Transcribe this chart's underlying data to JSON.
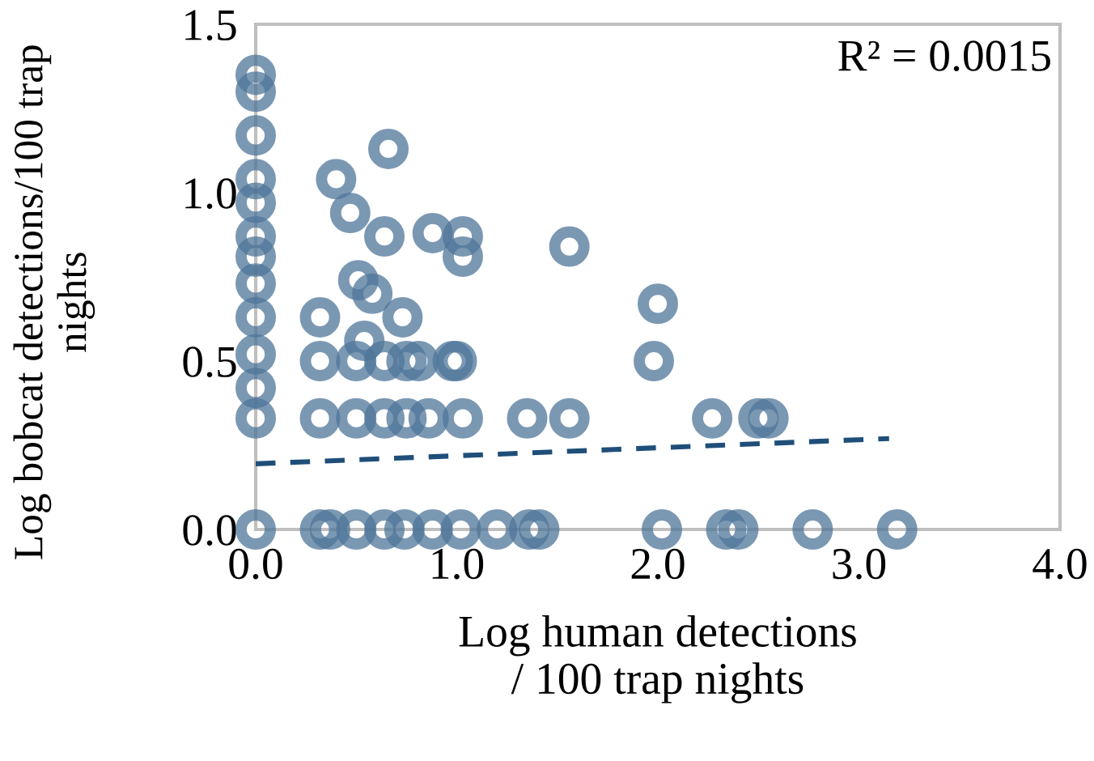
{
  "chart_data": {
    "type": "scatter",
    "xlabel": "Log human detections\n/ 100 trap nights",
    "ylabel": "Log bobcat detections/100 trap\nnights",
    "xlim": [
      0,
      4
    ],
    "ylim": [
      0,
      1.5
    ],
    "xticks": [
      {
        "value": 0,
        "label": "0.0"
      },
      {
        "value": 1,
        "label": "1.0"
      },
      {
        "value": 2,
        "label": "2.0"
      },
      {
        "value": 3,
        "label": "3.0"
      },
      {
        "value": 4,
        "label": "4.0"
      }
    ],
    "yticks": [
      {
        "value": 0,
        "label": "0.0"
      },
      {
        "value": 0.5,
        "label": "0.5"
      },
      {
        "value": 1,
        "label": "1.0"
      },
      {
        "value": 1.5,
        "label": "1.5"
      }
    ],
    "grid": false,
    "legend": false,
    "marker": "circle",
    "annotations": [
      "R² = 0.0015"
    ],
    "series": [
      {
        "color": "#4f7599",
        "x": [
          0,
          0,
          0,
          0,
          0,
          0,
          0,
          0,
          0,
          0,
          0,
          0,
          0,
          0.66,
          0.4,
          0.47,
          0.64,
          0.88,
          1.03,
          1.03,
          0.51,
          0.58,
          0.32,
          0.73,
          0.54,
          0.32,
          0.5,
          0.64,
          0.75,
          0.81,
          1.0,
          0.98,
          0.32,
          0.5,
          0.64,
          0.75,
          0.86,
          1.03,
          1.35,
          1.56,
          2.27,
          2.5,
          2.55,
          1.56,
          2.0,
          1.98,
          0.32,
          0.37,
          0.5,
          0.64,
          0.74,
          0.88,
          1.02,
          1.2,
          1.36,
          1.41,
          2.02,
          2.34,
          2.4,
          2.77,
          3.19
        ],
        "values": [
          1.35,
          1.3,
          1.17,
          1.04,
          0.97,
          0.87,
          0.81,
          0.73,
          0.63,
          0.52,
          0.42,
          0.33,
          0,
          1.13,
          1.04,
          0.94,
          0.87,
          0.88,
          0.87,
          0.81,
          0.74,
          0.7,
          0.63,
          0.63,
          0.56,
          0.5,
          0.5,
          0.5,
          0.5,
          0.5,
          0.5,
          0.5,
          0.33,
          0.33,
          0.33,
          0.33,
          0.33,
          0.33,
          0.33,
          0.33,
          0.33,
          0.33,
          0.33,
          0.84,
          0.67,
          0.5,
          0,
          0,
          0,
          0,
          0,
          0,
          0,
          0,
          0,
          0,
          0,
          0,
          0,
          0,
          0
        ]
      },
      {
        "type": "line",
        "color": "#1f4e79",
        "line_style": "dashed",
        "marker": "none",
        "x": [
          0,
          3.15
        ],
        "values": [
          0.195,
          0.27
        ]
      }
    ]
  }
}
